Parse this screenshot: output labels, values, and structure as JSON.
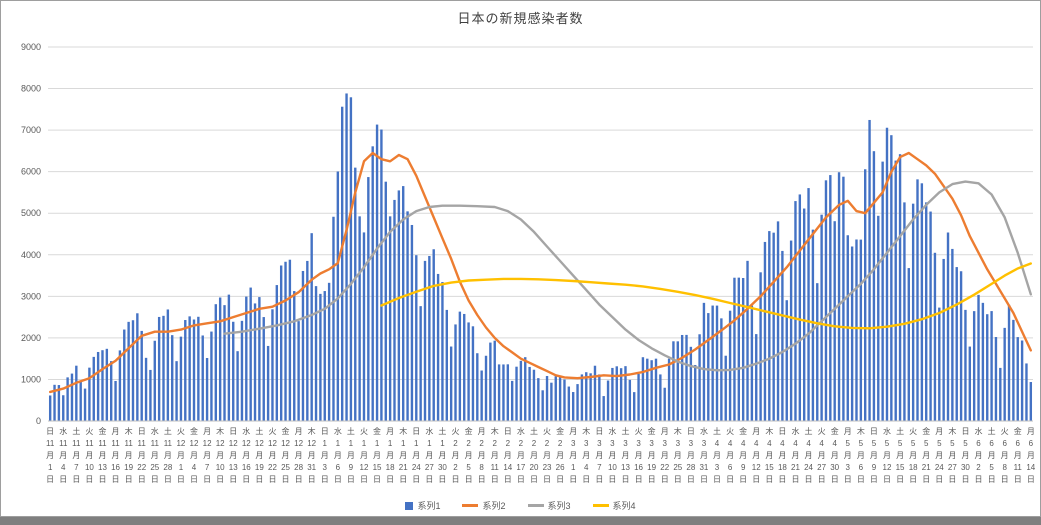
{
  "window": {
    "bottom_strip_color": "#7f7f7f"
  },
  "chart_data": {
    "type": "bar",
    "combo": "bar+line",
    "title": "日本の新規感染者数",
    "xlabel": "",
    "ylabel": "",
    "ylim": [
      0,
      9000
    ],
    "y_ticks": [
      0,
      1000,
      2000,
      3000,
      4000,
      5000,
      6000,
      7000,
      8000,
      9000
    ],
    "grid": true,
    "grid_color": "#d9d9d9",
    "axis_line_color": "#bfbfbf",
    "axis_text_color": "#595959",
    "legend_position": "bottom",
    "n_points": 226,
    "x_tick_every": 3,
    "x_ticks": [
      "日|11|1",
      "水|11|4",
      "土|11|7",
      "火|11|10",
      "金|11|13",
      "月|11|16",
      "木|11|19",
      "日|11|22",
      "水|11|25",
      "土|11|28",
      "火|12|1",
      "金|12|4",
      "月|12|7",
      "木|12|10",
      "日|12|13",
      "水|12|16",
      "土|12|19",
      "火|12|22",
      "金|12|25",
      "月|12|28",
      "木|12|31",
      "日|1|3",
      "水|1|6",
      "土|1|9",
      "火|1|12",
      "金|1|15",
      "月|1|18",
      "木|1|21",
      "日|1|24",
      "水|1|27",
      "土|1|30",
      "火|2|2",
      "金|2|5",
      "月|2|8",
      "木|2|11",
      "日|2|14",
      "水|2|17",
      "土|2|20",
      "火|2|23",
      "金|2|26",
      "月|3|1",
      "木|3|4",
      "日|3|7",
      "水|3|10",
      "土|3|13",
      "火|3|16",
      "金|3|19",
      "月|3|22",
      "木|3|25",
      "日|3|28",
      "水|3|31",
      "土|4|3",
      "火|4|6",
      "金|4|9",
      "月|4|12",
      "木|4|15",
      "日|4|18",
      "水|4|21",
      "土|4|24",
      "火|4|27",
      "金|4|30",
      "月|5|3",
      "木|5|6",
      "日|5|9",
      "水|5|12",
      "土|5|15",
      "火|5|18",
      "金|5|21",
      "月|5|24",
      "木|5|27",
      "日|5|30",
      "水|6|2",
      "土|6|5",
      "火|6|8",
      "金|6|11",
      "月|6|14"
    ],
    "series": [
      {
        "name": "系列1",
        "type": "bar",
        "color": "#4472C4",
        "values": [
          614,
          871,
          865,
          620,
          1050,
          1141,
          1331,
          951,
          780,
          1284,
          1543,
          1661,
          1704,
          1737,
          1441,
          963,
          1699,
          2201,
          2386,
          2425,
          2592,
          2168,
          1520,
          1229,
          1931,
          2504,
          2531,
          2684,
          2066,
          1440,
          2030,
          2430,
          2518,
          2442,
          2508,
          2058,
          1516,
          2152,
          2811,
          2972,
          2788,
          3041,
          2388,
          1680,
          2410,
          2994,
          3211,
          2829,
          2982,
          2501,
          1806,
          2688,
          3271,
          3742,
          3832,
          3881,
          3127,
          2403,
          3610,
          3852,
          4520,
          3246,
          3059,
          3127,
          3325,
          4915,
          6004,
          7563,
          7882,
          7790,
          6097,
          4925,
          4538,
          5870,
          6610,
          7133,
          7014,
          5759,
          4925,
          5320,
          5549,
          5653,
          5045,
          4717,
          3990,
          2764,
          3853,
          3971,
          4133,
          3539,
          3344,
          2673,
          1792,
          2324,
          2632,
          2576,
          2372,
          2279,
          1631,
          1215,
          1570,
          1887,
          1933,
          1362,
          1361,
          1364,
          965,
          1307,
          1448,
          1536,
          1301,
          1234,
          1032,
          739,
          1083,
          922,
          1076,
          1083,
          999,
          829,
          697,
          888,
          1121,
          1174,
          1148,
          1330,
          1121,
          600,
          974,
          1277,
          1316,
          1271,
          1320,
          989,
          695,
          1133,
          1535,
          1500,
          1463,
          1500,
          1121,
          800,
          1500,
          1918,
          1917,
          2070,
          2072,
          1785,
          1348,
          2087,
          2843,
          2597,
          2778,
          2777,
          2470,
          1571,
          2654,
          3448,
          3450,
          3441,
          3854,
          2777,
          2091,
          3578,
          4309,
          4570,
          4532,
          4804,
          4093,
          2907,
          4342,
          5292,
          5452,
          5113,
          5605,
          4605,
          3317,
          4965,
          5792,
          5918,
          4808,
          5986,
          5879,
          4470,
          4199,
          4368,
          4365,
          6058,
          7244,
          6493,
          4938,
          6242,
          7057,
          6878,
          6267,
          6421,
          5261,
          3680,
          5230,
          5815,
          5720,
          5261,
          5040,
          4048,
          2729,
          3900,
          4536,
          4141,
          3704,
          3604,
          2674,
          1791,
          2644,
          3035,
          2843,
          2570,
          2645,
          2021,
          1278,
          2241,
          2795,
          2434,
          2019,
          1937,
          1385,
          938
        ]
      },
      {
        "name": "系列2",
        "type": "line",
        "color": "#ED7D31",
        "points": [
          [
            0,
            700
          ],
          [
            3,
            780
          ],
          [
            6,
            920
          ],
          [
            9,
            1030
          ],
          [
            12,
            1250
          ],
          [
            15,
            1450
          ],
          [
            18,
            1750
          ],
          [
            21,
            2050
          ],
          [
            24,
            2150
          ],
          [
            27,
            2150
          ],
          [
            30,
            2200
          ],
          [
            33,
            2300
          ],
          [
            36,
            2350
          ],
          [
            39,
            2400
          ],
          [
            42,
            2500
          ],
          [
            45,
            2600
          ],
          [
            48,
            2700
          ],
          [
            51,
            2750
          ],
          [
            54,
            2900
          ],
          [
            57,
            3100
          ],
          [
            60,
            3400
          ],
          [
            62,
            3550
          ],
          [
            64,
            3650
          ],
          [
            66,
            3800
          ],
          [
            68,
            4600
          ],
          [
            70,
            5500
          ],
          [
            72,
            6250
          ],
          [
            74,
            6450
          ],
          [
            76,
            6300
          ],
          [
            78,
            6250
          ],
          [
            80,
            6400
          ],
          [
            82,
            6300
          ],
          [
            84,
            5900
          ],
          [
            86,
            5400
          ],
          [
            88,
            4900
          ],
          [
            90,
            4400
          ],
          [
            92,
            3900
          ],
          [
            94,
            3350
          ],
          [
            96,
            2900
          ],
          [
            98,
            2550
          ],
          [
            100,
            2250
          ],
          [
            102,
            2000
          ],
          [
            104,
            1800
          ],
          [
            106,
            1650
          ],
          [
            108,
            1500
          ],
          [
            110,
            1400
          ],
          [
            112,
            1300
          ],
          [
            114,
            1200
          ],
          [
            116,
            1100
          ],
          [
            118,
            1050
          ],
          [
            121,
            1030
          ],
          [
            124,
            1060
          ],
          [
            127,
            1100
          ],
          [
            130,
            1080
          ],
          [
            133,
            1120
          ],
          [
            136,
            1180
          ],
          [
            139,
            1280
          ],
          [
            142,
            1360
          ],
          [
            145,
            1520
          ],
          [
            148,
            1720
          ],
          [
            151,
            1950
          ],
          [
            154,
            2180
          ],
          [
            157,
            2420
          ],
          [
            160,
            2700
          ],
          [
            163,
            3000
          ],
          [
            166,
            3350
          ],
          [
            169,
            3700
          ],
          [
            172,
            4100
          ],
          [
            175,
            4500
          ],
          [
            178,
            4900
          ],
          [
            181,
            5200
          ],
          [
            183,
            5300
          ],
          [
            185,
            5050
          ],
          [
            187,
            5000
          ],
          [
            189,
            5250
          ],
          [
            191,
            5500
          ],
          [
            193,
            6000
          ],
          [
            195,
            6350
          ],
          [
            197,
            6450
          ],
          [
            199,
            6300
          ],
          [
            201,
            6150
          ],
          [
            203,
            5950
          ],
          [
            205,
            5650
          ],
          [
            207,
            5350
          ],
          [
            209,
            4950
          ],
          [
            211,
            4450
          ],
          [
            213,
            4050
          ],
          [
            215,
            3650
          ],
          [
            217,
            3300
          ],
          [
            219,
            2950
          ],
          [
            221,
            2600
          ],
          [
            223,
            2150
          ],
          [
            225,
            1700
          ]
        ]
      },
      {
        "name": "系列3",
        "type": "line",
        "color": "#A5A5A5",
        "points": [
          [
            40,
            2100
          ],
          [
            44,
            2150
          ],
          [
            48,
            2220
          ],
          [
            52,
            2300
          ],
          [
            56,
            2400
          ],
          [
            60,
            2550
          ],
          [
            63,
            2700
          ],
          [
            66,
            2950
          ],
          [
            69,
            3300
          ],
          [
            72,
            3700
          ],
          [
            75,
            4150
          ],
          [
            78,
            4550
          ],
          [
            81,
            4850
          ],
          [
            84,
            5050
          ],
          [
            87,
            5150
          ],
          [
            90,
            5180
          ],
          [
            94,
            5180
          ],
          [
            98,
            5170
          ],
          [
            102,
            5150
          ],
          [
            105,
            5050
          ],
          [
            108,
            4850
          ],
          [
            111,
            4550
          ],
          [
            114,
            4200
          ],
          [
            117,
            3850
          ],
          [
            120,
            3500
          ],
          [
            123,
            3150
          ],
          [
            126,
            2800
          ],
          [
            129,
            2500
          ],
          [
            132,
            2200
          ],
          [
            135,
            1950
          ],
          [
            138,
            1750
          ],
          [
            141,
            1580
          ],
          [
            144,
            1430
          ],
          [
            147,
            1320
          ],
          [
            150,
            1250
          ],
          [
            153,
            1220
          ],
          [
            156,
            1230
          ],
          [
            159,
            1280
          ],
          [
            162,
            1380
          ],
          [
            165,
            1500
          ],
          [
            168,
            1660
          ],
          [
            171,
            1860
          ],
          [
            174,
            2100
          ],
          [
            177,
            2400
          ],
          [
            180,
            2700
          ],
          [
            183,
            3000
          ],
          [
            186,
            3300
          ],
          [
            189,
            3650
          ],
          [
            192,
            4050
          ],
          [
            195,
            4450
          ],
          [
            198,
            4850
          ],
          [
            201,
            5200
          ],
          [
            204,
            5500
          ],
          [
            207,
            5700
          ],
          [
            210,
            5760
          ],
          [
            213,
            5720
          ],
          [
            216,
            5450
          ],
          [
            219,
            4900
          ],
          [
            222,
            4050
          ],
          [
            225,
            3050
          ]
        ]
      },
      {
        "name": "系列4",
        "type": "line",
        "color": "#FFC000",
        "points": [
          [
            76,
            2780
          ],
          [
            80,
            2960
          ],
          [
            84,
            3110
          ],
          [
            88,
            3250
          ],
          [
            92,
            3330
          ],
          [
            96,
            3380
          ],
          [
            100,
            3400
          ],
          [
            104,
            3420
          ],
          [
            108,
            3420
          ],
          [
            112,
            3410
          ],
          [
            116,
            3390
          ],
          [
            120,
            3370
          ],
          [
            124,
            3340
          ],
          [
            128,
            3310
          ],
          [
            132,
            3280
          ],
          [
            136,
            3240
          ],
          [
            140,
            3180
          ],
          [
            144,
            3110
          ],
          [
            148,
            3030
          ],
          [
            152,
            2940
          ],
          [
            156,
            2840
          ],
          [
            160,
            2740
          ],
          [
            164,
            2640
          ],
          [
            168,
            2540
          ],
          [
            172,
            2440
          ],
          [
            176,
            2350
          ],
          [
            180,
            2280
          ],
          [
            184,
            2240
          ],
          [
            188,
            2230
          ],
          [
            192,
            2270
          ],
          [
            196,
            2340
          ],
          [
            200,
            2450
          ],
          [
            204,
            2600
          ],
          [
            208,
            2800
          ],
          [
            212,
            3040
          ],
          [
            216,
            3300
          ],
          [
            219,
            3500
          ],
          [
            222,
            3670
          ],
          [
            225,
            3790
          ]
        ]
      }
    ]
  }
}
